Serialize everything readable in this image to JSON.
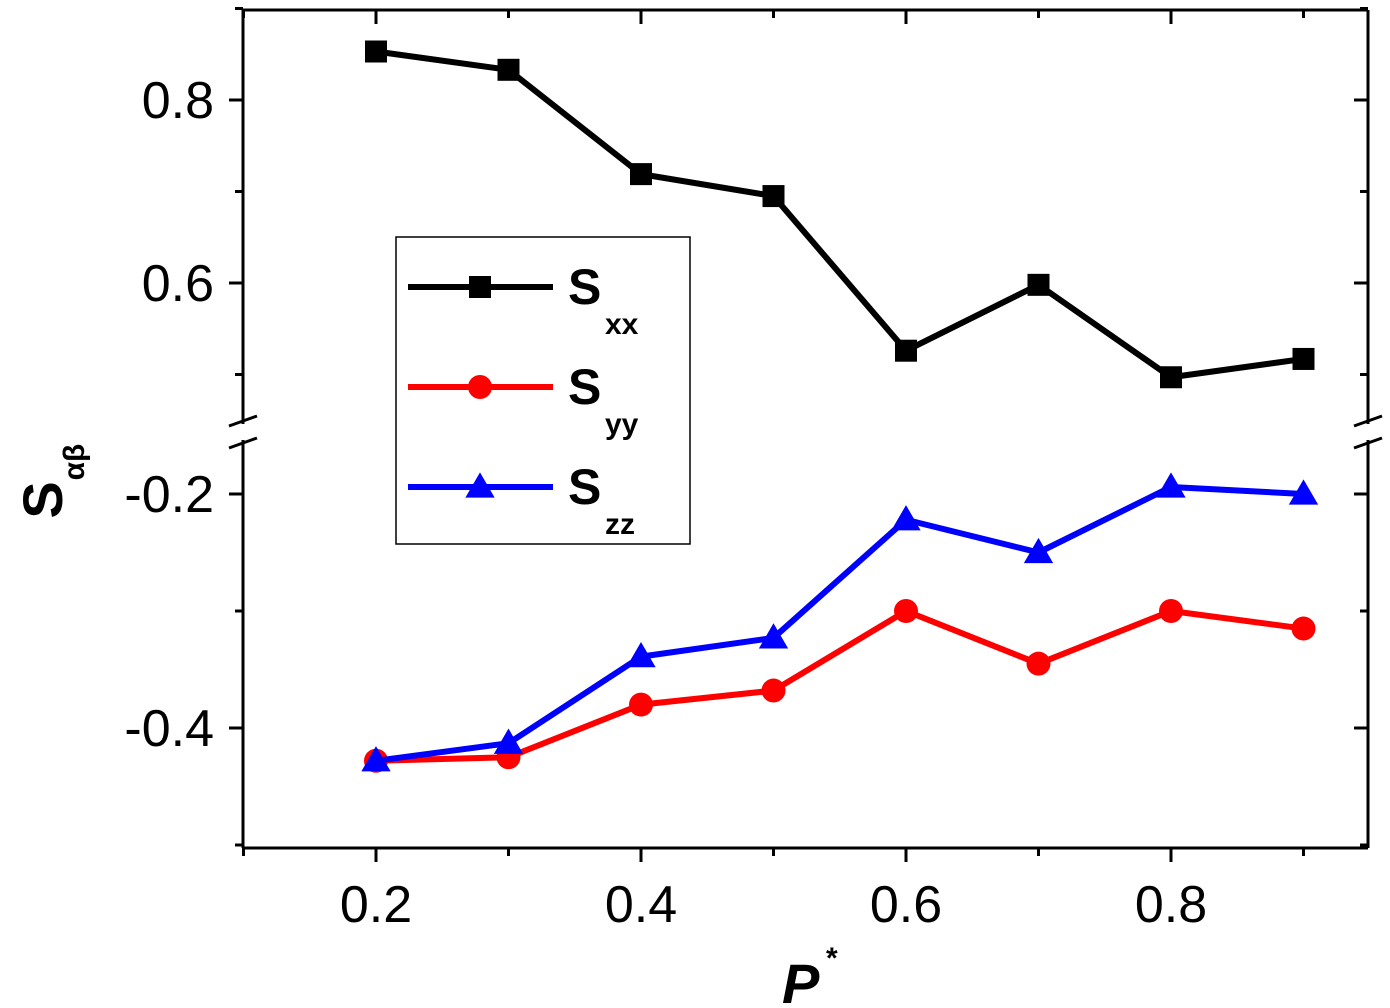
{
  "chart_data": {
    "type": "line",
    "x": [
      0.2,
      0.3,
      0.4,
      0.5,
      0.6,
      0.7,
      0.8,
      0.9
    ],
    "xlabel": "P",
    "xlabel_sup": "*",
    "ylabel": "S",
    "ylabel_sub": "αβ",
    "xlim": [
      0.1,
      0.95
    ],
    "x_ticks": [
      "0.2",
      "0.4",
      "0.6",
      "0.8"
    ],
    "y_axis_break": true,
    "y_upper_range": [
      0.48,
      0.9
    ],
    "y_lower_range": [
      -0.5,
      -0.19
    ],
    "y_ticks_upper": [
      "0.8",
      "0.6"
    ],
    "y_ticks_lower": [
      "-0.2",
      "-0.4"
    ],
    "series": [
      {
        "name": "S",
        "sub": "xx",
        "color": "#000000",
        "marker": "square",
        "segment": "upper",
        "values": [
          0.853,
          0.833,
          0.719,
          0.695,
          0.526,
          0.598,
          0.497,
          0.517
        ]
      },
      {
        "name": "S",
        "sub": "yy",
        "color": "#ff0000",
        "marker": "circle",
        "segment": "lower",
        "values": [
          -0.428,
          -0.425,
          -0.38,
          -0.368,
          -0.3,
          -0.345,
          -0.3,
          -0.315
        ]
      },
      {
        "name": "S",
        "sub": "zz",
        "color": "#0000ff",
        "marker": "triangle",
        "segment": "lower",
        "values": [
          -0.428,
          -0.413,
          -0.339,
          -0.323,
          -0.222,
          -0.25,
          -0.194,
          -0.2
        ]
      }
    ],
    "legend_position": "upper-left"
  }
}
